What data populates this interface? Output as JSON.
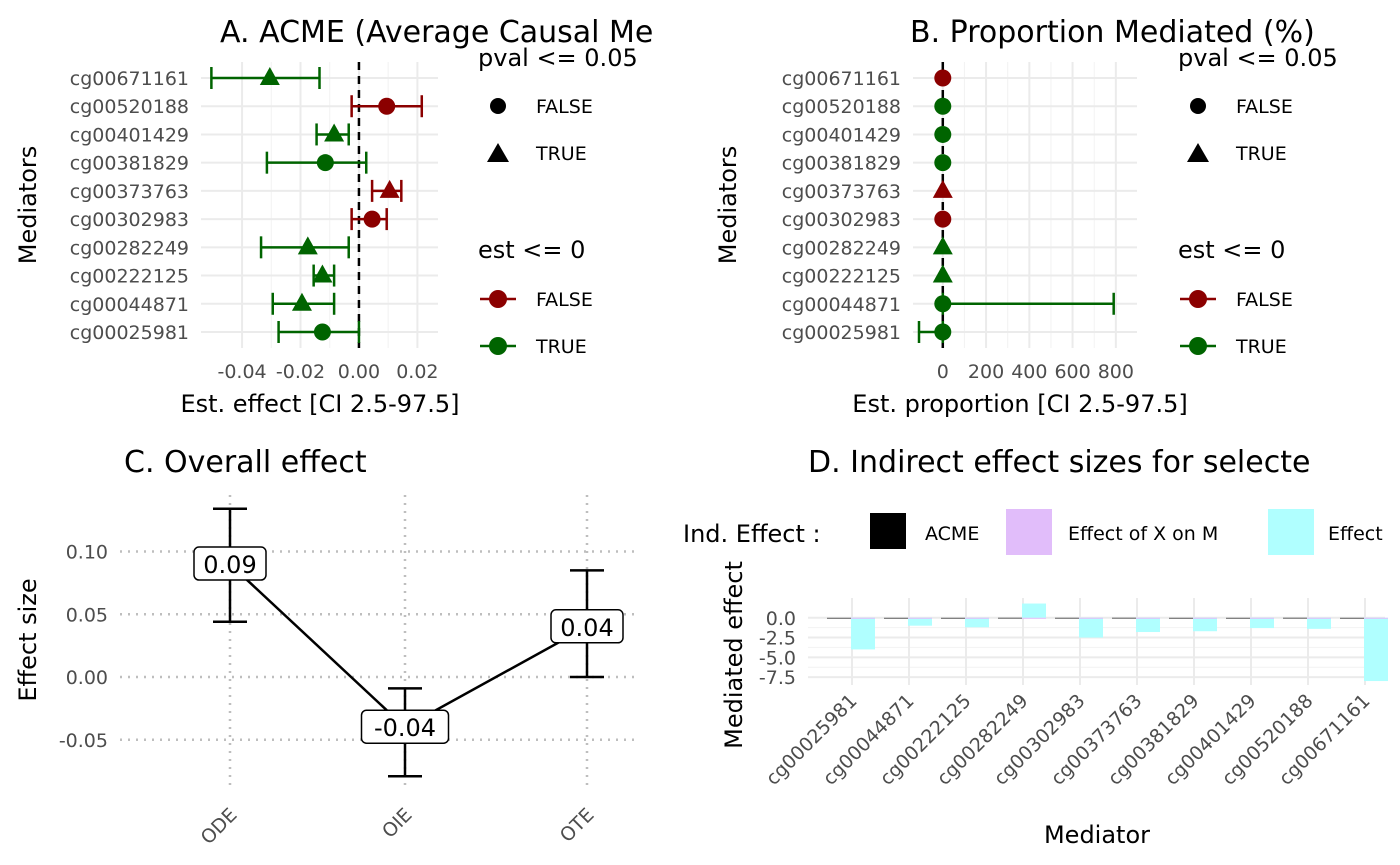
{
  "colors": {
    "false": "#8b0000",
    "true": "#006400",
    "acme": "#000000",
    "x_on_m": "#e1bdfa",
    "m_on_y": "#b0ffff"
  },
  "chart_data": [
    {
      "id": "A",
      "type": "scatter",
      "title": "A. ACME (Average Causal Mediation Effect)",
      "title_visible": "A. ACME (Average Causal Me",
      "xlabel": "Est. effect [CI 2.5-97.5]",
      "ylabel": "Mediators",
      "xlim": [
        -0.052,
        0.025
      ],
      "x_ticks": [
        -0.04,
        -0.02,
        0.0,
        0.02
      ],
      "x_tick_labels": [
        "-0.04",
        "-0.02",
        "0.00",
        "0.02"
      ],
      "vline": 0,
      "mediators": [
        "cg00671161",
        "cg00520188",
        "cg00401429",
        "cg00381829",
        "cg00373763",
        "cg00302983",
        "cg00282249",
        "cg00222125",
        "cg00044871",
        "cg00025981"
      ],
      "est": [
        -0.0305,
        0.0095,
        -0.0085,
        -0.0115,
        0.0105,
        0.0045,
        -0.0175,
        -0.0125,
        -0.0195,
        -0.0125
      ],
      "lower": [
        -0.0505,
        -0.0025,
        -0.0145,
        -0.0315,
        0.0045,
        -0.0025,
        -0.0335,
        -0.0155,
        -0.0295,
        -0.0275
      ],
      "upper": [
        -0.0135,
        0.0215,
        -0.0035,
        0.0025,
        0.0145,
        0.0095,
        -0.0035,
        -0.0085,
        -0.0085,
        0.0
      ],
      "pval_le_005": [
        true,
        false,
        true,
        false,
        true,
        false,
        true,
        true,
        true,
        false
      ],
      "est_le_0": [
        true,
        false,
        true,
        true,
        false,
        false,
        true,
        true,
        true,
        true
      ]
    },
    {
      "id": "B",
      "type": "scatter",
      "title": "B. Proportion Mediated (%)",
      "xlabel": "Est. proportion [CI 2.5-97.5]",
      "ylabel": "Mediators",
      "xlim": [
        -110,
        870
      ],
      "x_ticks": [
        0,
        200,
        400,
        600,
        800
      ],
      "x_tick_labels": [
        "0",
        "200",
        "400",
        "600",
        "800"
      ],
      "vline": 0,
      "mediators": [
        "cg00671161",
        "cg00520188",
        "cg00401429",
        "cg00381829",
        "cg00373763",
        "cg00302983",
        "cg00282249",
        "cg00222125",
        "cg00044871",
        "cg00025981"
      ],
      "est": [
        0,
        0,
        0,
        0,
        0,
        0,
        0,
        0,
        0,
        0
      ],
      "lower": [
        0,
        0,
        0,
        0,
        0,
        0,
        0,
        0,
        0,
        -110
      ],
      "upper": [
        0,
        0,
        0,
        0,
        0,
        0,
        0,
        0,
        790,
        0
      ],
      "pval_le_005": [
        false,
        false,
        false,
        false,
        true,
        false,
        true,
        true,
        false,
        false
      ],
      "est_le_0": [
        false,
        true,
        true,
        true,
        false,
        false,
        true,
        true,
        true,
        true
      ]
    },
    {
      "id": "C",
      "type": "line",
      "title": "C. Overall effect",
      "xlabel": "",
      "ylabel": "Effect size",
      "categories": [
        "ODE",
        "OIE",
        "OTE"
      ],
      "values": [
        0.09,
        -0.04,
        0.04
      ],
      "value_labels": [
        "0.09",
        "-0.04",
        "0.04"
      ],
      "lower": [
        0.044,
        -0.079,
        0.0
      ],
      "upper": [
        0.134,
        -0.009,
        0.085
      ],
      "ylim": [
        -0.09,
        0.145
      ],
      "y_ticks": [
        0.1,
        0.05,
        0.0,
        -0.05
      ],
      "y_tick_labels": [
        "0.10",
        "0.05",
        "0.00",
        "-0.05"
      ]
    },
    {
      "id": "D",
      "type": "bar",
      "title": "D. Indirect effect sizes for selected mediators",
      "title_visible": "D. Indirect effect sizes for selecte",
      "xlabel": "Mediator",
      "ylabel": "Mediated effect",
      "categories": [
        "cg00025981",
        "cg00044871",
        "cg00222125",
        "cg00282249",
        "cg00302983",
        "cg00373763",
        "cg00381829",
        "cg00401429",
        "cg00520188",
        "cg00671161"
      ],
      "series": [
        {
          "name": "ACME",
          "values": [
            -0.01,
            -0.02,
            -0.01,
            0.01,
            0.005,
            0.01,
            -0.01,
            -0.01,
            0.01,
            -0.03
          ]
        },
        {
          "name": "Effect of X on M",
          "values": [
            0,
            0,
            0,
            0,
            0,
            0,
            0,
            0,
            0,
            0
          ]
        },
        {
          "name": "Effect of M on Y",
          "values": [
            -4.0,
            -1.0,
            -1.2,
            1.8,
            -2.5,
            -1.8,
            -1.7,
            -1.3,
            -1.4,
            -8.0
          ]
        }
      ],
      "ylim": [
        -8.5,
        2.5
      ],
      "y_ticks": [
        0.0,
        -2.5,
        -5.0,
        -7.5
      ],
      "y_tick_labels": [
        "0.0",
        "-2.5",
        "-5.0",
        "-7.5"
      ]
    }
  ],
  "legends": {
    "pval": {
      "title": "pval <= 0.05",
      "items": [
        "FALSE",
        "TRUE"
      ]
    },
    "est": {
      "title": "est <= 0",
      "items": [
        "FALSE",
        "TRUE"
      ]
    },
    "ind_effect": {
      "title": "Ind. Effect :",
      "items": [
        "ACME",
        "Effect of X on M",
        "Effect"
      ]
    }
  }
}
